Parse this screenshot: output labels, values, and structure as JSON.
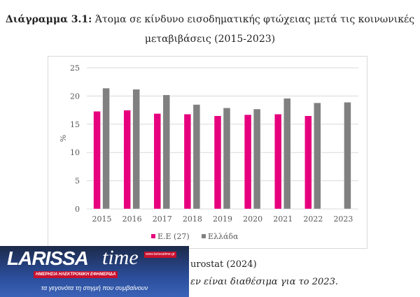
{
  "header": {
    "title_bold": "Διάγραμμα 3.1:",
    "title_rest": "Άτομα σε κίνδυνο εισοδηματικής φτώχειας μετά τις κοινωνικές",
    "title_line2": "μεταβιβάσεις (2015-2023)"
  },
  "chart_data": {
    "type": "bar",
    "title": "Διάγραμμα 3.1: Άτομα σε κίνδυνο εισοδηματικής φτώχειας μετά τις κοινωνικές μεταβιβάσεις (2015-2023)",
    "xlabel": "",
    "ylabel": "%",
    "ylim": [
      0,
      25
    ],
    "yticks": [
      0,
      5,
      10,
      15,
      20,
      25
    ],
    "grid": true,
    "legend_position": "bottom",
    "categories": [
      "2015",
      "2016",
      "2017",
      "2018",
      "2019",
      "2020",
      "2021",
      "2022",
      "2023"
    ],
    "series": [
      {
        "name": "Ε.Ε (27)",
        "color": "#e6007e",
        "values": [
          17.3,
          17.5,
          16.9,
          16.8,
          16.5,
          16.7,
          16.8,
          16.5,
          null
        ]
      },
      {
        "name": "Ελλάδα",
        "color": "#808080",
        "values": [
          21.4,
          21.2,
          20.2,
          18.5,
          17.9,
          17.7,
          19.6,
          18.8,
          18.9
        ]
      }
    ]
  },
  "footer": {
    "source": "urostat (2024)",
    "note": "εν είναι διαθέσιμα για το 2023."
  },
  "banner": {
    "logo_text": "LARISSA time",
    "url": "www.larissatime.gr",
    "subtitle": "ΗΜΕΡΗΣΙΑ ΗΛΕΚΤΡΟΝΙΚΗ ΕΦΗΜΕΡΙΔΑ",
    "slogan": "τα γεγονότα τη στιγμή που συμβαίνουν"
  }
}
